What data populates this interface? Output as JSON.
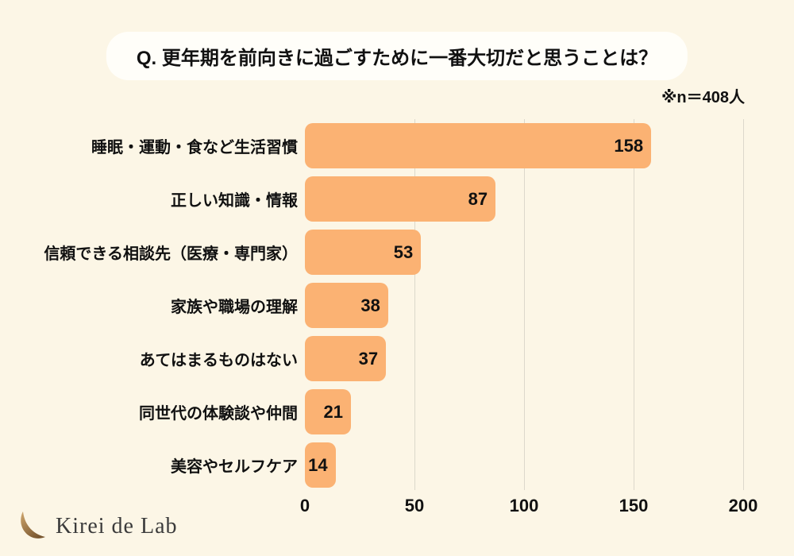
{
  "page": {
    "background_color": "#fcf6e6"
  },
  "title": {
    "text": "Q. 更年期を前向きに過ごすために一番大切だと思うことは？"
  },
  "sample_note": "※n＝408人",
  "chart_data": {
    "type": "bar",
    "orientation": "horizontal",
    "title": "Q. 更年期を前向きに過ごすために一番大切だと思うことは？",
    "categories": [
      "睡眠・運動・食など生活習慣",
      "正しい知識・情報",
      "信頼できる相談先（医療・専門家）",
      "家族や職場の理解",
      "あてはまるものはない",
      "同世代の体験談や仲間",
      "美容やセルフケア"
    ],
    "values": [
      158,
      87,
      53,
      38,
      37,
      21,
      14
    ],
    "xlabel": "",
    "ylabel": "",
    "xlim": [
      0,
      200
    ],
    "x_ticks": [
      0,
      50,
      100,
      150,
      200
    ],
    "grid": true,
    "value_labels_inside_bars": true,
    "bar_color": "#fbb273",
    "gridline_color": "#dcd8cb",
    "n": 408
  },
  "logo": {
    "icon": "crescent-icon",
    "text": "Kirei de Lab"
  }
}
